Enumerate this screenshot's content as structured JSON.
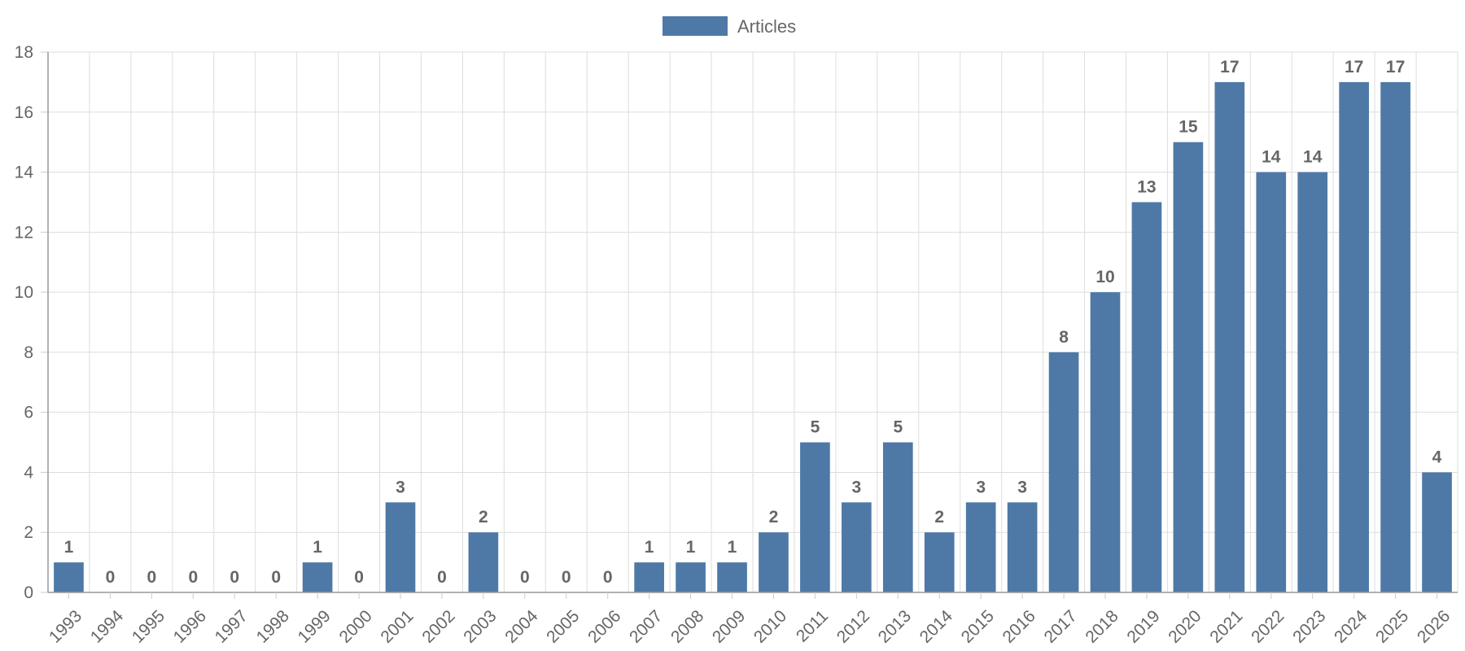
{
  "chart_data": {
    "type": "bar",
    "title": "",
    "xlabel": "",
    "ylabel": "",
    "categories": [
      "1993",
      "1994",
      "1995",
      "1996",
      "1997",
      "1998",
      "1999",
      "2000",
      "2001",
      "2002",
      "2003",
      "2004",
      "2005",
      "2006",
      "2007",
      "2008",
      "2009",
      "2010",
      "2011",
      "2012",
      "2013",
      "2014",
      "2015",
      "2016",
      "2017",
      "2018",
      "2019",
      "2020",
      "2021",
      "2022",
      "2023",
      "2024",
      "2025",
      "2026"
    ],
    "series": [
      {
        "name": "Articles",
        "color": "#4e79a7",
        "values": [
          1,
          0,
          0,
          0,
          0,
          0,
          1,
          0,
          3,
          0,
          2,
          0,
          0,
          0,
          1,
          1,
          1,
          2,
          5,
          3,
          5,
          2,
          3,
          3,
          8,
          10,
          13,
          15,
          17,
          14,
          14,
          17,
          17,
          4
        ]
      }
    ],
    "ylim": [
      0,
      18
    ],
    "yticks": [
      0,
      2,
      4,
      6,
      8,
      10,
      12,
      14,
      16,
      18
    ],
    "grid": true,
    "legend_position": "top-center",
    "data_labels": true,
    "x_tick_rotation_deg": -45
  }
}
